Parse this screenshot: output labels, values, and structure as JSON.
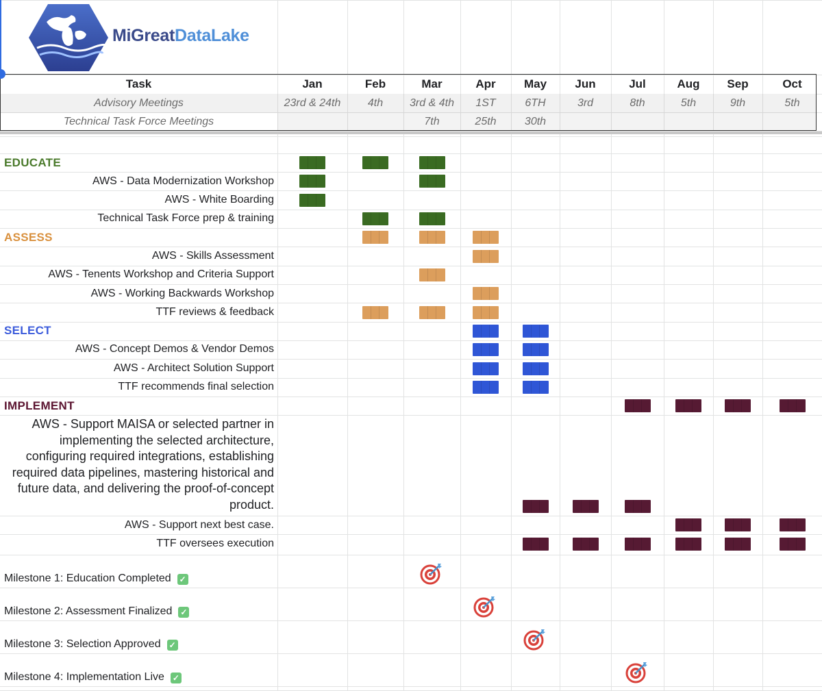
{
  "logo": {
    "text_part1": "MiGreat",
    "text_part2": "DataLake",
    "color_dark": "#3a4a8a",
    "color_light": "#4f8fd8"
  },
  "header": {
    "task_label": "Task",
    "months": [
      "Jan",
      "Feb",
      "Mar",
      "Apr",
      "May",
      "Jun",
      "Jul",
      "Aug",
      "Sep",
      "Oct"
    ],
    "advisory_label": "Advisory Meetings",
    "advisory_dates": [
      "23rd & 24th",
      "4th",
      "3rd & 4th",
      "1ST",
      "6TH",
      "3rd",
      "8th",
      "5th",
      "9th",
      "5th"
    ],
    "ttf_label": "Technical Task Force Meetings",
    "ttf_dates": [
      "",
      "",
      "7th",
      "25th",
      "30th",
      "",
      "",
      "",
      "",
      ""
    ]
  },
  "colors": {
    "educate": "#38761d",
    "assess": "#e0a060",
    "select": "#3b5bdb",
    "implement": "#5b0f2e"
  },
  "phases": [
    {
      "key": "educate",
      "name": "EDUCATE",
      "color": "#4a7a2b",
      "bar_color": "#3a6b22",
      "months": [
        0,
        1,
        2
      ],
      "tasks": [
        {
          "label": "AWS - Data Modernization Workshop",
          "months": [
            0,
            2
          ]
        },
        {
          "label": "AWS - White Boarding",
          "months": [
            0
          ]
        },
        {
          "label": "Technical Task Force prep & training",
          "months": [
            1,
            2
          ]
        }
      ]
    },
    {
      "key": "assess",
      "name": "ASSESS",
      "color": "#d9903d",
      "bar_color": "#dc9e5c",
      "months": [
        1,
        2,
        3
      ],
      "tasks": [
        {
          "label": "AWS - Skills Assessment",
          "months": [
            3
          ]
        },
        {
          "label": "AWS - Tenents Workshop and Criteria Support",
          "months": [
            2
          ]
        },
        {
          "label": "AWS - Working Backwards Workshop",
          "months": [
            3
          ]
        },
        {
          "label": "TTF reviews & feedback",
          "months": [
            1,
            2,
            3
          ]
        }
      ]
    },
    {
      "key": "select",
      "name": "SELECT",
      "color": "#3b5bdb",
      "bar_color": "#2f56d6",
      "months": [
        3,
        4
      ],
      "tasks": [
        {
          "label": "AWS - Concept Demos & Vendor Demos",
          "months": [
            3,
            4
          ]
        },
        {
          "label": "AWS - Architect Solution Support",
          "months": [
            3,
            4
          ]
        },
        {
          "label": "TTF recommends final selection",
          "months": [
            3,
            4
          ]
        }
      ]
    },
    {
      "key": "implement",
      "name": "IMPLEMENT",
      "color": "#5b1430",
      "bar_color": "#561a33",
      "months": [
        6,
        7,
        8,
        9
      ],
      "tasks": [
        {
          "label": "AWS - Support MAISA or selected partner in implementing the selected architecture, configuring required integrations, establishing required data pipelines, mastering historical and future data, and delivering the proof-of-concept product.",
          "months": [
            4,
            5,
            6
          ],
          "multiline": true
        },
        {
          "label": "AWS - Support next best case.",
          "months": [
            7,
            8,
            9
          ]
        },
        {
          "label": "TTF oversees execution",
          "months": [
            4,
            5,
            6,
            7,
            8,
            9
          ]
        }
      ]
    }
  ],
  "milestones": [
    {
      "label": "Milestone 1: Education Completed",
      "month": 2,
      "icon": "target-icon"
    },
    {
      "label": "Milestone 2: Assessment Finalized",
      "month": 3,
      "icon": "target-icon"
    },
    {
      "label": "Milestone 3: Selection Approved",
      "month": 4,
      "icon": "target-icon"
    },
    {
      "label": "Milestone 4: Implementation Live",
      "month": 6,
      "icon": "target-icon"
    }
  ],
  "check_icon": "check-mark-icon"
}
